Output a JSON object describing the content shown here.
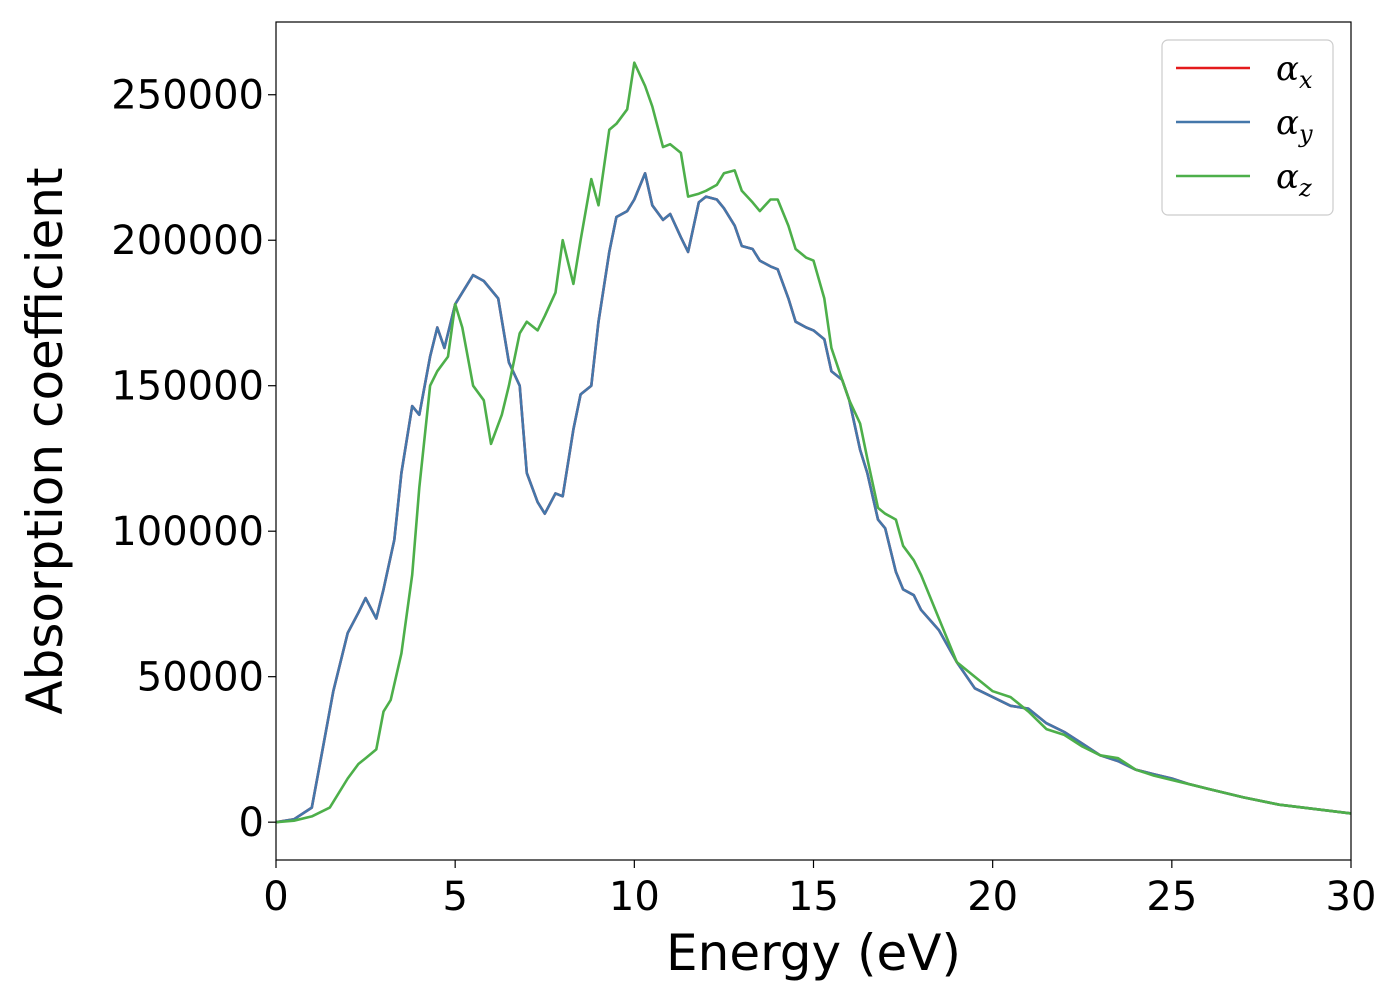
{
  "chart_data": {
    "type": "line",
    "title": "",
    "xlabel": "Energy (eV)",
    "ylabel": "Absorption coefficient",
    "xlim": [
      0,
      30
    ],
    "ylim": [
      -13000,
      275000
    ],
    "xticks": [
      0,
      5,
      10,
      15,
      20,
      25,
      30
    ],
    "yticks": [
      0,
      50000,
      100000,
      150000,
      200000,
      250000
    ],
    "grid": false,
    "legend_position": "top-right",
    "series": [
      {
        "name": "α",
        "subscript": "x",
        "color": "#e41a1c",
        "x": [
          0,
          0.5,
          1.0,
          1.3,
          1.6,
          2.0,
          2.3,
          2.5,
          2.8,
          3.0,
          3.3,
          3.5,
          3.8,
          4.0,
          4.3,
          4.5,
          4.7,
          5.0,
          5.2,
          5.5,
          5.8,
          6.2,
          6.5,
          6.8,
          7.0,
          7.3,
          7.5,
          7.8,
          8.0,
          8.3,
          8.5,
          8.8,
          9.0,
          9.3,
          9.5,
          9.8,
          10.0,
          10.3,
          10.5,
          10.8,
          11.0,
          11.3,
          11.5,
          11.8,
          12.0,
          12.3,
          12.5,
          12.8,
          13.0,
          13.3,
          13.5,
          13.8,
          14.0,
          14.3,
          14.5,
          14.8,
          15.0,
          15.3,
          15.5,
          15.8,
          16.0,
          16.3,
          16.5,
          16.8,
          17.0,
          17.3,
          17.5,
          17.8,
          18.0,
          18.5,
          19.0,
          19.5,
          20.0,
          20.5,
          21.0,
          21.5,
          22.0,
          22.5,
          23.0,
          23.5,
          24.0,
          24.5,
          25.0,
          25.5,
          26.0,
          27.0,
          28.0,
          29.0,
          30.0
        ],
        "y": [
          0,
          1000,
          5000,
          25000,
          45000,
          65000,
          72000,
          77000,
          70000,
          80000,
          97000,
          120000,
          143000,
          140000,
          160000,
          170000,
          163000,
          178000,
          182000,
          188000,
          186000,
          180000,
          158000,
          150000,
          120000,
          110000,
          106000,
          113000,
          112000,
          135000,
          147000,
          150000,
          172000,
          196000,
          208000,
          210000,
          214000,
          223000,
          212000,
          207000,
          209000,
          201000,
          196000,
          213000,
          215000,
          214000,
          211000,
          205000,
          198000,
          197000,
          193000,
          191000,
          190000,
          180000,
          172000,
          170000,
          169000,
          166000,
          155000,
          152000,
          145000,
          128000,
          120000,
          104000,
          101000,
          86000,
          80000,
          78000,
          73000,
          66000,
          55000,
          46000,
          43000,
          40000,
          39000,
          34000,
          31000,
          27000,
          23000,
          21000,
          18000,
          16500,
          15000,
          13000,
          11500,
          8500,
          6000,
          4500,
          3000
        ]
      },
      {
        "name": "α",
        "subscript": "y",
        "color": "#4477aa",
        "x": [
          0,
          0.5,
          1.0,
          1.3,
          1.6,
          2.0,
          2.3,
          2.5,
          2.8,
          3.0,
          3.3,
          3.5,
          3.8,
          4.0,
          4.3,
          4.5,
          4.7,
          5.0,
          5.2,
          5.5,
          5.8,
          6.2,
          6.5,
          6.8,
          7.0,
          7.3,
          7.5,
          7.8,
          8.0,
          8.3,
          8.5,
          8.8,
          9.0,
          9.3,
          9.5,
          9.8,
          10.0,
          10.3,
          10.5,
          10.8,
          11.0,
          11.3,
          11.5,
          11.8,
          12.0,
          12.3,
          12.5,
          12.8,
          13.0,
          13.3,
          13.5,
          13.8,
          14.0,
          14.3,
          14.5,
          14.8,
          15.0,
          15.3,
          15.5,
          15.8,
          16.0,
          16.3,
          16.5,
          16.8,
          17.0,
          17.3,
          17.5,
          17.8,
          18.0,
          18.5,
          19.0,
          19.5,
          20.0,
          20.5,
          21.0,
          21.5,
          22.0,
          22.5,
          23.0,
          23.5,
          24.0,
          24.5,
          25.0,
          25.5,
          26.0,
          27.0,
          28.0,
          29.0,
          30.0
        ],
        "y": [
          0,
          1000,
          5000,
          25000,
          45000,
          65000,
          72000,
          77000,
          70000,
          80000,
          97000,
          120000,
          143000,
          140000,
          160000,
          170000,
          163000,
          178000,
          182000,
          188000,
          186000,
          180000,
          158000,
          150000,
          120000,
          110000,
          106000,
          113000,
          112000,
          135000,
          147000,
          150000,
          172000,
          196000,
          208000,
          210000,
          214000,
          223000,
          212000,
          207000,
          209000,
          201000,
          196000,
          213000,
          215000,
          214000,
          211000,
          205000,
          198000,
          197000,
          193000,
          191000,
          190000,
          180000,
          172000,
          170000,
          169000,
          166000,
          155000,
          152000,
          145000,
          128000,
          120000,
          104000,
          101000,
          86000,
          80000,
          78000,
          73000,
          66000,
          55000,
          46000,
          43000,
          40000,
          39000,
          34000,
          31000,
          27000,
          23000,
          21000,
          18000,
          16500,
          15000,
          13000,
          11500,
          8500,
          6000,
          4500,
          3000
        ]
      },
      {
        "name": "α",
        "subscript": "z",
        "color": "#4daf4a",
        "x": [
          0,
          0.5,
          1.0,
          1.5,
          2.0,
          2.3,
          2.5,
          2.8,
          3.0,
          3.2,
          3.5,
          3.8,
          4.0,
          4.3,
          4.5,
          4.8,
          5.0,
          5.2,
          5.5,
          5.8,
          6.0,
          6.3,
          6.5,
          6.8,
          7.0,
          7.3,
          7.5,
          7.8,
          8.0,
          8.3,
          8.5,
          8.8,
          9.0,
          9.3,
          9.5,
          9.8,
          10.0,
          10.3,
          10.5,
          10.8,
          11.0,
          11.3,
          11.5,
          11.8,
          12.0,
          12.3,
          12.5,
          12.8,
          13.0,
          13.3,
          13.5,
          13.8,
          14.0,
          14.3,
          14.5,
          14.8,
          15.0,
          15.3,
          15.5,
          15.8,
          16.0,
          16.3,
          16.5,
          16.8,
          17.0,
          17.3,
          17.5,
          17.8,
          18.0,
          18.5,
          19.0,
          19.5,
          20.0,
          20.5,
          21.0,
          21.5,
          22.0,
          22.5,
          23.0,
          23.5,
          24.0,
          24.5,
          25.0,
          25.5,
          26.0,
          27.0,
          28.0,
          29.0,
          30.0
        ],
        "y": [
          0,
          500,
          2000,
          5000,
          15000,
          20000,
          22000,
          25000,
          38000,
          42000,
          58000,
          85000,
          115000,
          150000,
          155000,
          160000,
          178000,
          170000,
          150000,
          145000,
          130000,
          140000,
          150000,
          168000,
          172000,
          169000,
          174000,
          182000,
          200000,
          185000,
          200000,
          221000,
          212000,
          238000,
          240000,
          245000,
          261000,
          253000,
          246000,
          232000,
          233000,
          230000,
          215000,
          216000,
          217000,
          219000,
          223000,
          224000,
          217000,
          213000,
          210000,
          214000,
          214000,
          205000,
          197000,
          194000,
          193000,
          180000,
          163000,
          152000,
          145000,
          137000,
          125000,
          108000,
          106000,
          104000,
          95000,
          90000,
          85000,
          70000,
          55000,
          50000,
          45000,
          43000,
          38000,
          32000,
          30000,
          26000,
          23000,
          22000,
          18000,
          16000,
          14500,
          13000,
          11500,
          8500,
          6000,
          4500,
          3000
        ]
      }
    ]
  }
}
